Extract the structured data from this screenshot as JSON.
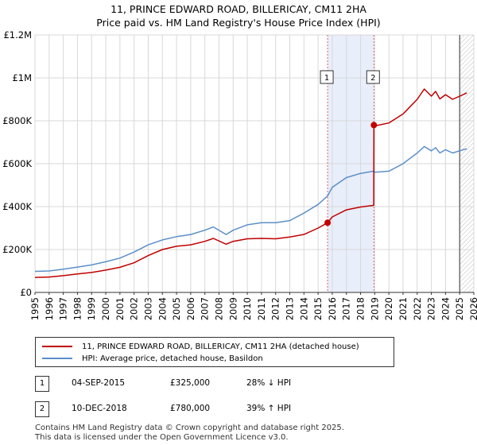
{
  "title_line1": "11, PRINCE EDWARD ROAD, BILLERICAY, CM11 2HA",
  "title_line2": "Price paid vs. HM Land Registry's House Price Index (HPI)",
  "legend": {
    "property_label": "11, PRINCE EDWARD ROAD, BILLERICAY, CM11 2HA (detached house)",
    "hpi_label": "HPI: Average price, detached house, Basildon"
  },
  "transactions": [
    {
      "marker": "1",
      "date": "04-SEP-2015",
      "price": "£325,000",
      "hpi_change": "28% ↓ HPI"
    },
    {
      "marker": "2",
      "date": "10-DEC-2018",
      "price": "£780,000",
      "hpi_change": "39% ↑ HPI"
    }
  ],
  "footer_line1": "Contains HM Land Registry data © Crown copyright and database right 2025.",
  "footer_line2": "This data is licensed under the Open Government Licence v3.0.",
  "colors": {
    "property": "#c00000",
    "hpi": "#5b8fc9",
    "shade": "#e8eefa",
    "vline": "#e06060"
  },
  "chart_data": {
    "type": "line",
    "title": "11, PRINCE EDWARD ROAD, BILLERICAY, CM11 2HA",
    "subtitle": "Price paid vs. HM Land Registry's House Price Index (HPI)",
    "xlabel": "",
    "ylabel": "",
    "xlim": [
      1995,
      2026
    ],
    "ylim": [
      0,
      1200000
    ],
    "y_ticks": [
      0,
      200000,
      400000,
      600000,
      800000,
      1000000,
      1200000
    ],
    "y_tick_labels": [
      "£0",
      "£200K",
      "£400K",
      "£600K",
      "£800K",
      "£1M",
      "£1.2M"
    ],
    "x_ticks": [
      1995,
      1996,
      1997,
      1998,
      1999,
      2000,
      2001,
      2002,
      2003,
      2004,
      2005,
      2006,
      2007,
      2008,
      2009,
      2010,
      2011,
      2012,
      2013,
      2014,
      2015,
      2016,
      2017,
      2018,
      2019,
      2020,
      2021,
      2022,
      2023,
      2024,
      2025,
      2026
    ],
    "grid": true,
    "highlight_span": [
      2015.67,
      2018.94
    ],
    "forecast_start": 2025.0,
    "series": [
      {
        "name": "HPI: Average price, detached house, Basildon",
        "x": [
          1995,
          1996,
          1997,
          1998,
          1999,
          2000,
          2001,
          2002,
          2003,
          2004,
          2005,
          2006,
          2007,
          2007.6,
          2008.5,
          2009,
          2010,
          2011,
          2012,
          2013,
          2014,
          2015,
          2015.67,
          2016,
          2017,
          2018,
          2018.94,
          2019,
          2020,
          2021,
          2022,
          2022.5,
          2023,
          2023.3,
          2023.6,
          2024,
          2024.5,
          2025,
          2025.5
        ],
        "values": [
          98000,
          100000,
          108000,
          118000,
          128000,
          143000,
          160000,
          188000,
          222000,
          245000,
          260000,
          270000,
          290000,
          305000,
          270000,
          290000,
          315000,
          325000,
          325000,
          335000,
          370000,
          410000,
          450000,
          490000,
          535000,
          555000,
          565000,
          560000,
          565000,
          600000,
          650000,
          680000,
          660000,
          675000,
          650000,
          665000,
          650000,
          660000,
          670000
        ]
      },
      {
        "name": "11, PRINCE EDWARD ROAD, BILLERICAY, CM11 2HA (detached house)",
        "x": [
          1995,
          1996,
          1997,
          1998,
          1999,
          2000,
          2001,
          2002,
          2003,
          2004,
          2005,
          2006,
          2007,
          2007.6,
          2008.5,
          2009,
          2010,
          2011,
          2012,
          2013,
          2014,
          2015,
          2015.67,
          2016,
          2017,
          2018,
          2018.93,
          2018.94,
          2019,
          2020,
          2021,
          2022,
          2022.5,
          2023,
          2023.3,
          2023.6,
          2024,
          2024.5,
          2025,
          2025.5
        ],
        "values": [
          70000,
          72000,
          78000,
          86000,
          93000,
          104000,
          117000,
          138000,
          172000,
          200000,
          215000,
          222000,
          238000,
          252000,
          225000,
          238000,
          250000,
          252000,
          250000,
          258000,
          270000,
          300000,
          325000,
          352000,
          385000,
          398000,
          406000,
          780000,
          776000,
          790000,
          832000,
          900000,
          948000,
          915000,
          937000,
          902000,
          922000,
          900000,
          915000,
          930000
        ]
      }
    ],
    "markers": [
      {
        "label": "1",
        "x": 2015.67,
        "value": 325000
      },
      {
        "label": "2",
        "x": 2018.94,
        "value": 780000
      }
    ]
  }
}
